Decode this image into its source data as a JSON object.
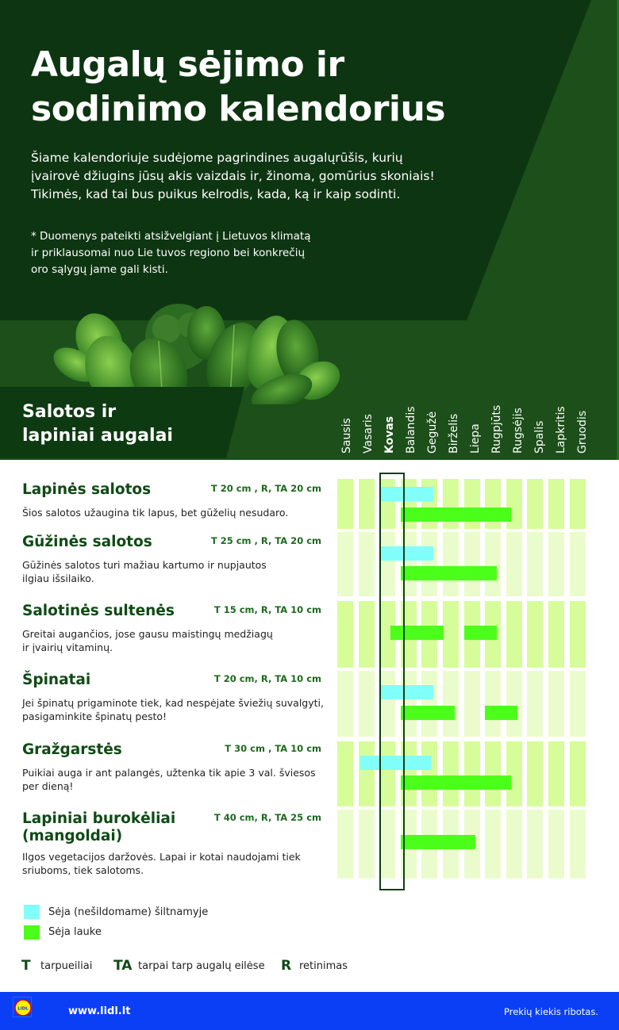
{
  "header": {
    "title_line1": "Augalų sėjimo ir",
    "title_line2": "sodinimo kalendorius",
    "intro_line1": "Šiame kalendoriuje sudėjome pagrindines augalųrūšis, kurių",
    "intro_line2": "įvairovė džiugins jūsų akis vaizdais ir, žinoma, gomūrius skoniais!",
    "intro_line3": "Tikimės, kad tai bus puikus kelrodis, kada, ką ir kaip sodinti.",
    "note_line1": "* Duomenys pateikti atsižvelgiant į Lietuvos klimatą",
    "note_line2": "ir priklausomai nuo Lie tuvos regiono bei konkrečių",
    "note_line3": "oro sąlygų jame gali kisti."
  },
  "section": {
    "title_line1": "Salotos ir",
    "title_line2": "lapiniai augalai"
  },
  "months": [
    "Sausis",
    "Vasaris",
    "Kovas",
    "Balandis",
    "Gegužė",
    "Birželis",
    "Liepa",
    "Rugpjūts",
    "Rugsėjis",
    "Spalis",
    "Lapkritis",
    "Gruodis"
  ],
  "highlighted_month": "Kovas",
  "plants": [
    {
      "name": "Lapinės salotos",
      "spec": "T 20 cm , R, TA 20 cm",
      "desc_line1": "Šios salotos užaugina tik lapus, bet gūželių nesudaro.",
      "desc_line2": ""
    },
    {
      "name": "Gūžinės salotos",
      "spec": "T 25 cm , R, TA 20 cm",
      "desc_line1": "Gūžinės salotos turi mažiau kartumo ir nupjautos",
      "desc_line2": "ilgiau išsilaiko."
    },
    {
      "name": "Salotinės sultenės",
      "spec": "T 15 cm, R, TA 10 cm",
      "desc_line1": "Greitai augančios, jose gausu maistingų medžiagų",
      "desc_line2": "ir įvairių vitaminų."
    },
    {
      "name": "Špinatai",
      "spec": "T 20 cm, R, TA 10 cm",
      "desc_line1": "Jei špinatų prigaminote tiek, kad nespėjate šviežių suvalgyti,",
      "desc_line2": "pasigaminkite špinatų pesto!"
    },
    {
      "name": "Gražgarstės",
      "spec": "T 30 cm , TA 10 cm",
      "desc_line1": "Puikiai auga ir ant palangės, užtenka tik apie 3 val. šviesos",
      "desc_line2": "per dieną!"
    },
    {
      "name": "Lapiniai burokėliai",
      "name_line2": "(mangoldai)",
      "spec": "T 40 cm, R, TA 25 cm",
      "desc_line1": "Ilgos vegetacijos daržovės. Lapai ir kotai naudojami tiek",
      "desc_line2": "sriuboms, tiek salotoms."
    }
  ],
  "chart_data": {
    "type": "table",
    "title": "Salotos ir lapiniai augalai",
    "categories": [
      "Sausis",
      "Vasaris",
      "Kovas",
      "Balandis",
      "Gegužė",
      "Birželis",
      "Liepa",
      "Rugpjūts",
      "Rugsėjis",
      "Spalis",
      "Lapkritis",
      "Gruodis"
    ],
    "series": [
      {
        "name": "Sėja (nešildomame) šiltnamyje",
        "color": "#80fffb",
        "rows": [
          {
            "plant": "Lapinės salotos",
            "from_month": 3.0,
            "to_month": 4.8
          },
          {
            "plant": "Gūžinės salotos",
            "from_month": 3.0,
            "to_month": 4.8
          },
          {
            "plant": "Špinatai",
            "from_month": 3.0,
            "to_month": 4.8
          },
          {
            "plant": "Gražgarstės",
            "from_month": 2.1,
            "to_month": 4.7
          }
        ]
      },
      {
        "name": "Sėja lauke",
        "color": "#4cff1a",
        "rows": [
          {
            "plant": "Lapinės salotos",
            "from_month": 4.0,
            "to_month": 8.5
          },
          {
            "plant": "Gūžinės salotos",
            "from_month": 4.0,
            "to_month": 7.8
          },
          {
            "plant": "Salotinės sultenės",
            "from_month": 3.5,
            "to_month": 5.3
          },
          {
            "plant": "Salotinės sultenės",
            "from_month": 7.0,
            "to_month": 7.8
          },
          {
            "plant": "Špinatai",
            "from_month": 4.0,
            "to_month": 5.8
          },
          {
            "plant": "Špinatai",
            "from_month": 8.0,
            "to_month": 8.8
          },
          {
            "plant": "Gražgarstės",
            "from_month": 4.0,
            "to_month": 8.5
          },
          {
            "plant": "Lapiniai burokėliai (mangoldai)",
            "from_month": 4.0,
            "to_month": 6.8
          }
        ]
      }
    ],
    "highlight_column": "Kovas"
  },
  "legend": {
    "greenhouse_label": "Sėja (nešildomame) šiltnamyje",
    "greenhouse_color": "#80fffb",
    "outdoor_label": "Sėja lauke",
    "outdoor_color": "#4cff1a"
  },
  "abbreviations": [
    {
      "key": "T",
      "text": "tarpueiliai"
    },
    {
      "key": "TA",
      "text": "tarpai tarp augalų eilėse"
    },
    {
      "key": "R",
      "text": "retinimas"
    }
  ],
  "footer": {
    "logo_text": "LIDL",
    "url": "www.lidl.lt",
    "disclaimer": "Prekių kiekis ribotas."
  },
  "colors": {
    "dark_green": "#0e3512",
    "mid_green": "#1c4f19",
    "heading_green": "#0f4a15",
    "footer_blue": "#0b3ff5",
    "row_dark": "#d6fd9a",
    "row_light": "#ebfccc"
  }
}
